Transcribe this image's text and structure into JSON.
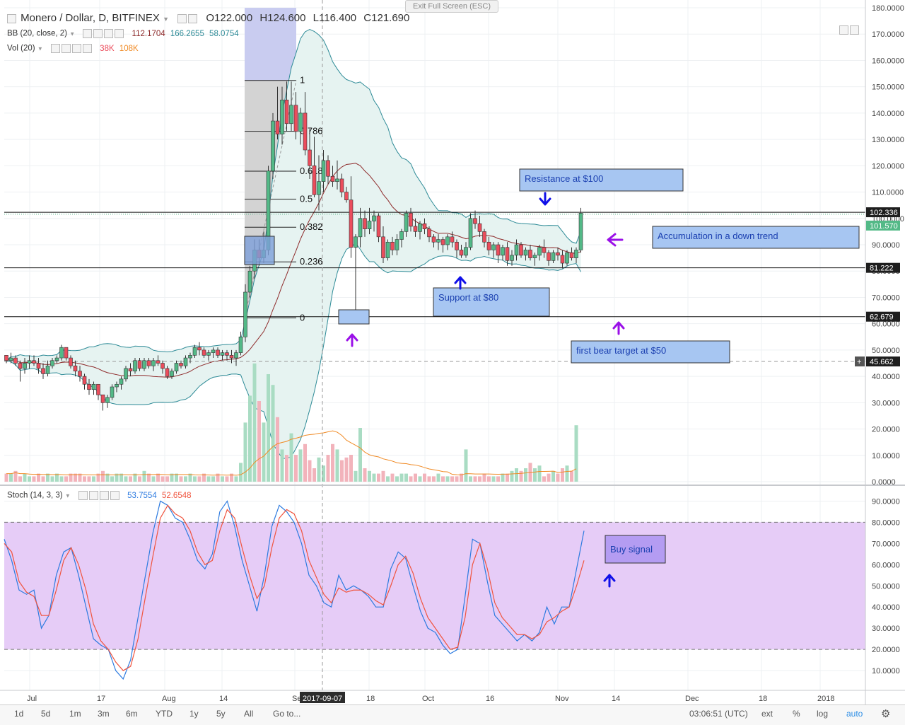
{
  "header": {
    "symbol": "Monero / Dollar, D, BITFINEX",
    "ohlc": [
      {
        "k": "O",
        "v": "122.000"
      },
      {
        "k": "H",
        "v": "124.600"
      },
      {
        "k": "L",
        "v": "116.400"
      },
      {
        "k": "C",
        "v": "121.690"
      }
    ],
    "bb_label": "BB (20, close, 2)",
    "bb_values": [
      "112.1704",
      "166.2655",
      "58.0754"
    ],
    "vol_label": "Vol (20)",
    "vol_values": [
      "38K",
      "108K"
    ],
    "stoch_label": "Stoch (14, 3, 3)",
    "stoch_values": [
      "53.7554",
      "52.6548"
    ],
    "exit_fullscreen": "Exit Full Screen (ESC)"
  },
  "colors": {
    "up": "#53b987",
    "down": "#eb4d5c",
    "bb_band": "#2e8b97",
    "bb_fill": "#e6f3f1",
    "bb_basis": "#8e2b2b",
    "stoch_k": "#2d7be0",
    "stoch_d": "#f0543e",
    "stoch_zone": "#e6ccf7",
    "annotation_fill": "#a7c6f2",
    "arrow_blue": "#1010e8",
    "arrow_purple": "#9a10e8"
  },
  "chart_data": [
    {
      "type": "candlestick",
      "title": "Monero / Dollar, D, BITFINEX",
      "ylim": [
        0,
        180
      ],
      "y_ticks": [
        "180.0000",
        "170.0000",
        "160.0000",
        "150.0000",
        "140.0000",
        "130.0000",
        "120.0000",
        "110.0000",
        "100.0000",
        "90.0000",
        "80.0000",
        "70.0000",
        "60.0000",
        "50.0000",
        "40.0000",
        "30.0000",
        "20.0000",
        "10.0000",
        "0.0000"
      ],
      "x_ticks": [
        "Jul",
        "17",
        "Aug",
        "14",
        "Se",
        "2017-09-07",
        "18",
        "Oct",
        "16",
        "Nov",
        "14",
        "Dec",
        "18",
        "2018"
      ],
      "price_labels": [
        {
          "value": "102.336",
          "bg": "#1e1e1e"
        },
        {
          "value": "101.570",
          "bg": "#53b987"
        },
        {
          "value": "81.222",
          "bg": "#1e1e1e"
        },
        {
          "value": "62.679",
          "bg": "#1e1e1e"
        },
        {
          "value": "45.662",
          "bg": "#1e1e1e"
        }
      ],
      "fibonacci": {
        "levels": [
          "1",
          "0.786",
          "0.618",
          "0.5",
          "0.382",
          "0.236",
          "0"
        ],
        "high": 152.4,
        "low": 62.2
      },
      "horizontal_lines": [
        102.336,
        81.222,
        62.679
      ],
      "current_price_line": 101.57,
      "annotations": [
        "Resistance at $100",
        "Accumulation in a down trend",
        "Support at $80",
        "first bear target at $50"
      ],
      "candles_ohlc": [
        [
          48,
          48,
          45,
          46
        ],
        [
          46,
          49,
          45,
          47
        ],
        [
          47,
          48,
          44,
          45
        ],
        [
          45,
          46,
          38,
          43
        ],
        [
          43,
          47,
          41,
          45
        ],
        [
          45,
          48,
          43,
          46
        ],
        [
          46,
          48,
          44,
          45
        ],
        [
          45,
          47,
          41,
          43
        ],
        [
          43,
          45,
          39,
          41
        ],
        [
          41,
          46,
          40,
          44
        ],
        [
          44,
          47,
          43,
          46
        ],
        [
          46,
          48,
          45,
          47
        ],
        [
          47,
          52,
          46,
          51
        ],
        [
          51,
          51,
          46,
          47
        ],
        [
          47,
          48,
          43,
          44
        ],
        [
          44,
          46,
          40,
          42
        ],
        [
          42,
          44,
          38,
          40
        ],
        [
          40,
          41,
          35,
          37
        ],
        [
          37,
          39,
          33,
          35
        ],
        [
          35,
          38,
          33,
          37
        ],
        [
          37,
          37,
          31,
          33
        ],
        [
          33,
          33,
          27,
          30
        ],
        [
          30,
          33,
          28,
          32
        ],
        [
          32,
          37,
          31,
          36
        ],
        [
          36,
          38,
          34,
          37
        ],
        [
          37,
          40,
          35,
          39
        ],
        [
          39,
          44,
          38,
          43
        ],
        [
          43,
          45,
          40,
          42
        ],
        [
          42,
          47,
          41,
          46
        ],
        [
          46,
          47,
          42,
          43
        ],
        [
          43,
          47,
          42,
          46
        ],
        [
          46,
          47,
          43,
          44
        ],
        [
          44,
          47,
          42,
          46
        ],
        [
          46,
          48,
          44,
          45
        ],
        [
          45,
          46,
          41,
          43
        ],
        [
          43,
          44,
          39,
          40
        ],
        [
          40,
          43,
          39,
          42
        ],
        [
          42,
          46,
          41,
          45
        ],
        [
          45,
          46,
          43,
          44
        ],
        [
          44,
          48,
          43,
          47
        ],
        [
          47,
          49,
          45,
          48
        ],
        [
          48,
          52,
          47,
          51
        ],
        [
          51,
          53,
          48,
          50
        ],
        [
          50,
          51,
          47,
          48
        ],
        [
          48,
          50,
          46,
          49
        ],
        [
          49,
          51,
          47,
          50
        ],
        [
          50,
          51,
          47,
          48
        ],
        [
          48,
          50,
          46,
          49
        ],
        [
          49,
          50,
          46,
          48
        ],
        [
          48,
          50,
          45,
          47
        ],
        [
          47,
          50,
          44,
          49
        ],
        [
          49,
          57,
          48,
          55
        ],
        [
          55,
          75,
          53,
          72
        ],
        [
          72,
          82,
          70,
          80
        ],
        [
          80,
          92,
          77,
          88
        ],
        [
          88,
          92,
          82,
          85
        ],
        [
          85,
          95,
          83,
          88
        ],
        [
          88,
          120,
          86,
          118
        ],
        [
          118,
          140,
          115,
          137
        ],
        [
          137,
          150,
          130,
          132
        ],
        [
          132,
          150,
          128,
          145
        ],
        [
          145,
          152,
          133,
          136
        ],
        [
          136,
          152,
          133,
          143
        ],
        [
          143,
          148,
          130,
          133
        ],
        [
          133,
          142,
          128,
          140
        ],
        [
          140,
          148,
          124,
          126
        ],
        [
          126,
          134,
          115,
          120
        ],
        [
          120,
          131,
          108,
          109
        ],
        [
          109,
          124,
          103,
          114
        ],
        [
          114,
          126,
          110,
          122
        ],
        [
          122,
          124,
          113,
          116
        ],
        [
          116,
          120,
          112,
          114
        ],
        [
          114,
          122,
          111,
          115
        ],
        [
          115,
          117,
          108,
          110
        ],
        [
          110,
          112,
          106,
          107
        ],
        [
          107,
          116,
          85,
          89
        ],
        [
          89,
          94,
          62,
          93
        ],
        [
          93,
          104,
          89,
          100
        ],
        [
          100,
          103,
          93,
          96
        ],
        [
          96,
          104,
          94,
          99
        ],
        [
          99,
          103,
          95,
          101
        ],
        [
          101,
          102,
          91,
          93
        ],
        [
          93,
          97,
          83,
          85
        ],
        [
          85,
          92,
          84,
          91
        ],
        [
          91,
          93,
          86,
          88
        ],
        [
          88,
          94,
          86,
          92
        ],
        [
          92,
          96,
          89,
          95
        ],
        [
          95,
          103,
          93,
          102
        ],
        [
          102,
          104,
          95,
          97
        ],
        [
          97,
          100,
          93,
          95
        ],
        [
          95,
          99,
          92,
          98
        ],
        [
          98,
          100,
          94,
          96
        ],
        [
          96,
          97,
          91,
          93
        ],
        [
          93,
          94,
          89,
          91
        ],
        [
          91,
          94,
          88,
          92
        ],
        [
          92,
          93,
          87,
          90
        ],
        [
          90,
          94,
          88,
          93
        ],
        [
          93,
          95,
          89,
          91
        ],
        [
          91,
          92,
          85,
          88
        ],
        [
          88,
          90,
          85,
          86
        ],
        [
          86,
          91,
          85,
          89
        ],
        [
          89,
          102,
          88,
          100
        ],
        [
          100,
          103,
          96,
          98
        ],
        [
          98,
          101,
          93,
          95
        ],
        [
          95,
          96,
          89,
          91
        ],
        [
          91,
          93,
          86,
          88
        ],
        [
          88,
          91,
          85,
          90
        ],
        [
          90,
          91,
          83,
          86
        ],
        [
          86,
          90,
          84,
          89
        ],
        [
          89,
          91,
          82,
          84
        ],
        [
          84,
          88,
          82,
          86
        ],
        [
          86,
          92,
          84,
          90
        ],
        [
          90,
          91,
          85,
          86
        ],
        [
          86,
          89,
          84,
          88
        ],
        [
          88,
          90,
          84,
          85
        ],
        [
          85,
          87,
          82,
          86
        ],
        [
          86,
          90,
          84,
          89
        ],
        [
          89,
          92,
          85,
          87
        ],
        [
          87,
          88,
          82,
          84
        ],
        [
          84,
          88,
          83,
          87
        ],
        [
          87,
          89,
          84,
          86
        ],
        [
          86,
          88,
          81,
          83
        ],
        [
          83,
          88,
          82,
          87
        ],
        [
          87,
          89,
          84,
          85
        ],
        [
          85,
          89,
          83,
          88
        ],
        [
          88,
          104,
          87,
          102
        ]
      ]
    },
    {
      "type": "line",
      "title": "Stoch (14, 3, 3)",
      "ylim": [
        0,
        95
      ],
      "y_ticks": [
        "90.0000",
        "80.0000",
        "70.0000",
        "60.0000",
        "50.0000",
        "40.0000",
        "30.0000",
        "20.0000",
        "10.0000"
      ],
      "bands": [
        20,
        80
      ],
      "series": [
        {
          "name": "%K",
          "values": [
            72,
            62,
            48,
            46,
            48,
            30,
            36,
            55,
            66,
            68,
            55,
            40,
            25,
            22,
            20,
            10,
            6,
            15,
            35,
            55,
            75,
            90,
            88,
            82,
            80,
            72,
            62,
            58,
            65,
            85,
            90,
            78,
            62,
            50,
            38,
            55,
            78,
            88,
            85,
            80,
            70,
            55,
            50,
            42,
            40,
            55,
            48,
            50,
            48,
            45,
            40,
            40,
            58,
            66,
            63,
            50,
            38,
            30,
            28,
            22,
            18,
            20,
            45,
            72,
            70,
            52,
            36,
            32,
            28,
            24,
            27,
            24,
            28,
            40,
            32,
            40,
            40,
            58,
            76
          ]
        },
        {
          "name": "%D",
          "values": [
            70,
            66,
            52,
            47,
            45,
            36,
            36,
            48,
            62,
            68,
            60,
            48,
            32,
            24,
            20,
            14,
            10,
            12,
            25,
            45,
            64,
            82,
            88,
            84,
            82,
            76,
            66,
            60,
            62,
            76,
            86,
            82,
            68,
            55,
            44,
            50,
            68,
            82,
            86,
            84,
            76,
            62,
            54,
            46,
            42,
            49,
            47,
            48,
            48,
            46,
            43,
            41,
            50,
            60,
            64,
            56,
            44,
            35,
            30,
            25,
            20,
            21,
            35,
            60,
            70,
            58,
            42,
            35,
            31,
            27,
            27,
            25,
            27,
            33,
            35,
            38,
            40,
            50,
            62
          ]
        }
      ]
    },
    {
      "type": "bar",
      "title": "Vol (20)",
      "values": [
        3,
        3,
        4,
        2,
        3,
        2,
        2,
        3,
        2,
        3,
        2,
        3,
        2,
        2,
        3,
        3,
        3,
        2,
        2,
        2,
        3,
        4,
        3,
        2,
        3,
        3,
        2,
        2,
        3,
        2,
        4,
        3,
        2,
        3,
        2,
        2,
        3,
        3,
        2,
        2,
        3,
        2,
        2,
        3,
        2,
        2,
        3,
        2,
        2,
        3,
        2,
        7,
        22,
        32,
        44,
        30,
        22,
        40,
        36,
        24,
        12,
        10,
        18,
        10,
        12,
        14,
        8,
        5,
        9,
        6,
        10,
        14,
        12,
        8,
        9,
        10,
        4,
        20,
        5,
        4,
        3,
        3,
        4,
        2,
        3,
        2,
        3,
        3,
        2,
        3,
        2,
        3,
        2,
        2,
        3,
        2,
        2,
        2,
        2,
        3,
        12,
        2,
        2,
        2,
        3,
        2,
        2,
        2,
        3,
        3,
        4,
        5,
        4,
        5,
        7,
        5,
        6,
        2,
        3,
        4,
        3,
        5,
        6,
        4,
        21
      ]
    }
  ],
  "toolbar": {
    "intervals": [
      "1d",
      "5d",
      "1m",
      "3m",
      "6m",
      "YTD",
      "1y",
      "5y",
      "All",
      "Go to..."
    ],
    "time": "03:06:51 (UTC)",
    "right_items": [
      "ext",
      "%",
      "log",
      "auto"
    ]
  }
}
